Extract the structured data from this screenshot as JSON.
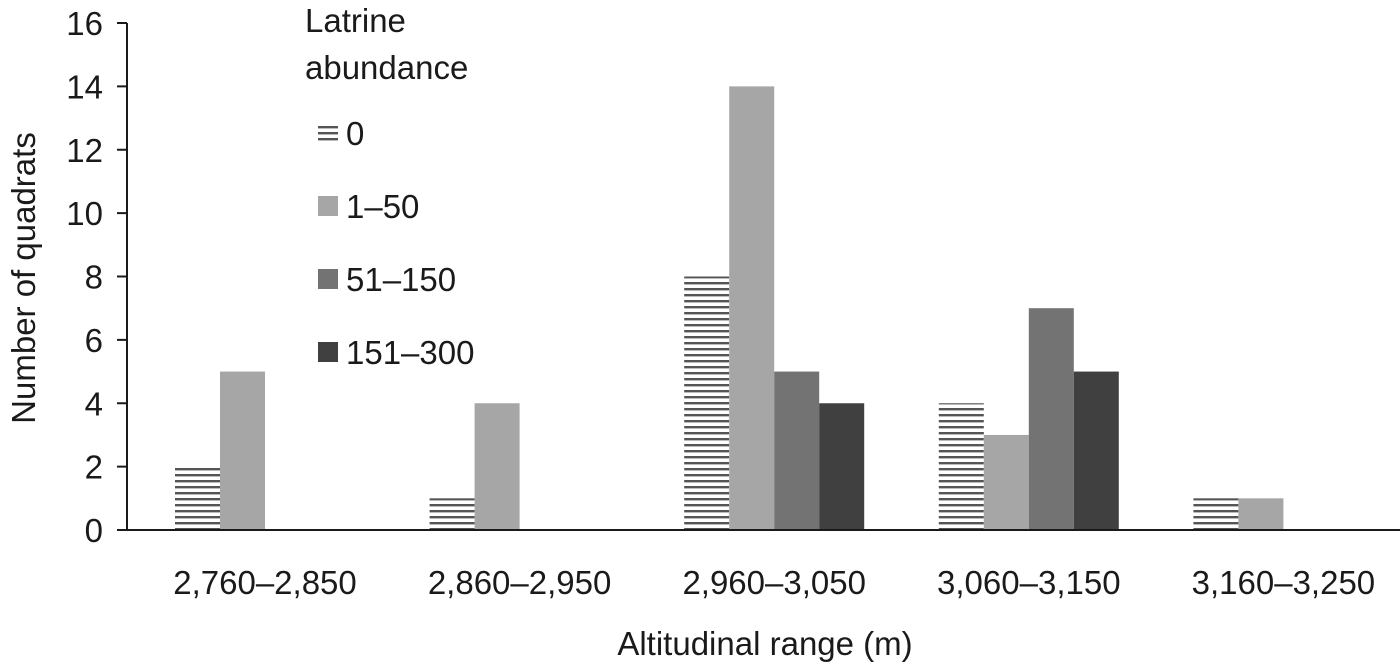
{
  "chart_data": {
    "type": "bar",
    "categories": [
      "2,760–2,850",
      "2,860–2,950",
      "2,960–3,050",
      "3,060–3,150",
      "3,160–3,250"
    ],
    "series": [
      {
        "name": "0",
        "values": [
          2,
          1,
          8,
          4,
          1
        ],
        "color": "#ffffff",
        "pattern": "horizontal-lines"
      },
      {
        "name": "1–50",
        "values": [
          5,
          4,
          14,
          3,
          1
        ],
        "color": "#a6a6a6"
      },
      {
        "name": "51–150",
        "values": [
          0,
          0,
          5,
          7,
          0
        ],
        "color": "#737373"
      },
      {
        "name": "151–300",
        "values": [
          0,
          0,
          4,
          5,
          0
        ],
        "color": "#404040"
      }
    ],
    "title": "",
    "xlabel": "Altitudinal range (m)",
    "ylabel": "Number of quadrats",
    "ylim": [
      0,
      16
    ],
    "yticks": [
      0,
      2,
      4,
      6,
      8,
      10,
      12,
      14,
      16
    ],
    "grid": false,
    "legend": {
      "title_lines": [
        "Latrine",
        "abundance"
      ],
      "placement": "top-left"
    }
  }
}
